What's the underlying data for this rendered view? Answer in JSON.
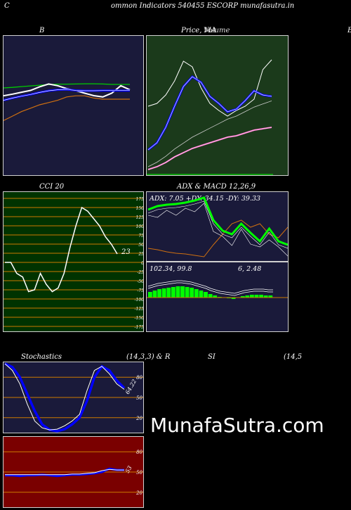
{
  "header": {
    "left_letter": "C",
    "title": "ommon  Indicators 540455 ESCORP munafasutra.in"
  },
  "titles": {
    "bb": "B",
    "price_ma": "Price,  MA",
    "price_overlap": "Volume",
    "right_edge": "B",
    "cci": "CCI 20",
    "adx_macd": "ADX  & MACD 12,26,9",
    "stoch_left": "Stochastics",
    "stoch_params": "(14,3,3) & R",
    "rsi": "SI",
    "rsi_params": "(14,5"
  },
  "colors": {
    "bb_bg": "#1a1a3a",
    "price_bg": "#1b3a1b",
    "cci_bg": "#003300",
    "adx_bg": "#1a1a3a",
    "stoch_bg": "#1a1a3a",
    "rsi_bg": "#7a0000",
    "blue": "#0000ff",
    "green_line": "#00ff00",
    "orange": "#d07010",
    "grid_orange": "#cc7a00"
  },
  "chart_data": [
    {
      "type": "line",
      "panel": "bollinger",
      "series": [
        {
          "color": "green",
          "values": [
            15,
            14.5,
            13.8,
            13.2,
            12.6,
            12,
            11.6,
            11.6,
            11.5,
            11.3,
            11.3,
            11.5,
            11.9,
            11.9,
            11.9
          ]
        },
        {
          "color": "white",
          "values": [
            22,
            20.5,
            18.8,
            17.2,
            14,
            11.5,
            13,
            15.6,
            17.4,
            19.7,
            21.9,
            23,
            19.6,
            13,
            16.6
          ]
        },
        {
          "color": "blue",
          "values": [
            26,
            24,
            22.3,
            20.8,
            19,
            17.5,
            16.6,
            16.4,
            17.2,
            17.5,
            17.5,
            17.3,
            17.3,
            17.3,
            17.3
          ]
        },
        {
          "color": "orange",
          "values": [
            44,
            40,
            36,
            33,
            30,
            28,
            26,
            23,
            22,
            22,
            24,
            25,
            25,
            25,
            25
          ]
        }
      ]
    },
    {
      "type": "line",
      "panel": "price_ma",
      "series": [
        {
          "color": "white",
          "values": [
            0.5,
            0.52,
            0.58,
            0.68,
            0.82,
            0.78,
            0.63,
            0.52,
            0.47,
            0.43,
            0.47,
            0.5,
            0.55,
            0.76,
            0.83
          ]
        },
        {
          "color": "blue",
          "values": [
            0.19,
            0.24,
            0.35,
            0.5,
            0.64,
            0.71,
            0.67,
            0.57,
            0.52,
            0.46,
            0.48,
            0.54,
            0.61,
            0.58,
            0.57
          ]
        },
        {
          "color": "pink",
          "values": [
            0.05,
            0.07,
            0.1,
            0.14,
            0.17,
            0.2,
            0.22,
            0.24,
            0.26,
            0.28,
            0.29,
            0.31,
            0.33,
            0.34,
            0.35
          ]
        }
      ]
    },
    {
      "type": "line",
      "panel": "cci",
      "ticks": [
        175,
        150,
        125,
        100,
        75,
        50,
        25,
        0,
        -25,
        -50,
        -75,
        -100,
        -125,
        -150,
        -175
      ],
      "last_value_label": "23",
      "values": [
        0,
        0,
        -30,
        -40,
        -80,
        -75,
        -30,
        -60,
        -80,
        -70,
        -30,
        40,
        100,
        150,
        140,
        120,
        100,
        70,
        50,
        23
      ]
    },
    {
      "type": "line",
      "panel": "adx",
      "label": "ADX: 7.05 +DY: 34.15 -DY: 39.33",
      "series": [
        {
          "name": "+DY",
          "color": "green",
          "values": [
            75,
            80,
            82,
            83,
            85,
            88,
            92,
            60,
            45,
            40,
            55,
            42,
            30,
            48,
            30,
            25
          ]
        },
        {
          "name": "-DY",
          "color": "orange",
          "values": [
            20,
            18,
            15,
            13,
            12,
            10,
            8,
            25,
            40,
            55,
            60,
            50,
            55,
            40,
            35,
            50
          ]
        }
      ]
    },
    {
      "type": "bar",
      "panel": "macd",
      "label_left": "102.34,  99.8",
      "label_right": "6,  2.48",
      "values": [
        8,
        10,
        12,
        13,
        14,
        15,
        16,
        16,
        15,
        14,
        12,
        10,
        8,
        5,
        3,
        1,
        0,
        -1,
        -2,
        0,
        2,
        3,
        4,
        4,
        4,
        3,
        3
      ]
    },
    {
      "type": "line",
      "panel": "stochastics",
      "ticks": [
        80,
        50,
        20
      ],
      "last_value_label": "64.22",
      "series": [
        {
          "color": "blue",
          "values": [
            100,
            95,
            80,
            55,
            30,
            10,
            2,
            0,
            3,
            10,
            20,
            45,
            80,
            96,
            90,
            75,
            64
          ]
        },
        {
          "color": "white",
          "values": [
            100,
            90,
            70,
            40,
            15,
            5,
            2,
            3,
            8,
            15,
            25,
            60,
            90,
            96,
            85,
            70,
            62
          ]
        }
      ]
    },
    {
      "type": "line",
      "panel": "rsi",
      "ticks": [
        80,
        50,
        20
      ],
      "last_value_label": "53",
      "series": [
        {
          "color": "blue",
          "values": [
            45,
            45,
            44,
            45,
            45,
            46,
            45,
            44,
            45,
            46,
            46,
            47,
            48,
            50,
            55,
            53,
            53
          ]
        },
        {
          "color": "white",
          "values": [
            46,
            46,
            46,
            46,
            46,
            46,
            46,
            46,
            46,
            47,
            47,
            48,
            49,
            52,
            54,
            53,
            53
          ]
        }
      ]
    }
  ],
  "watermark": "MunafaSutra.com"
}
